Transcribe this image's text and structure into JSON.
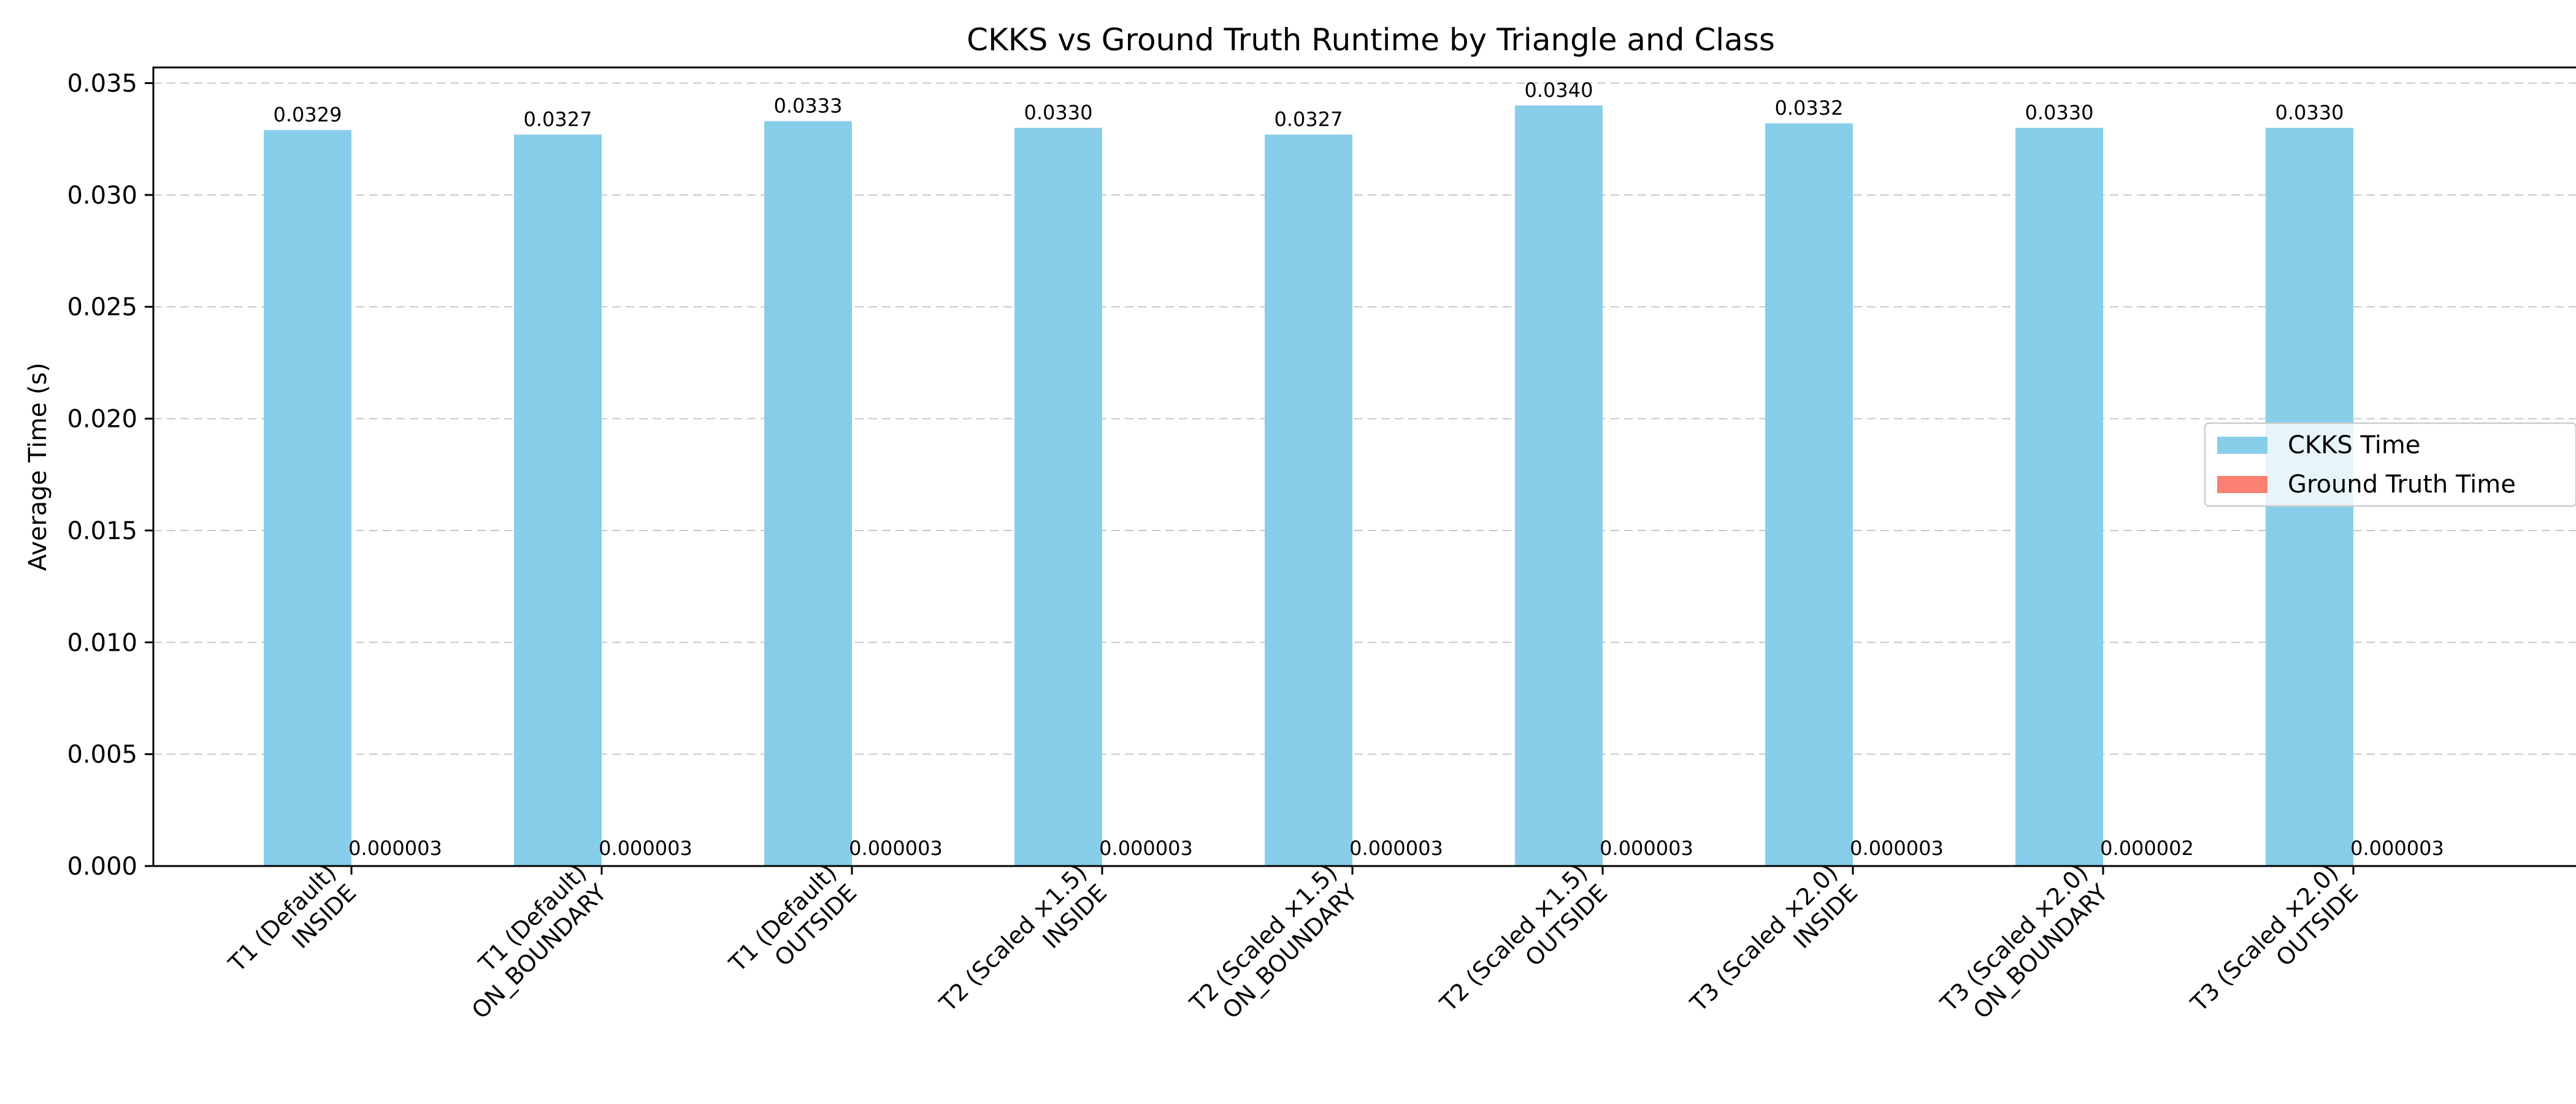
{
  "chart_data": {
    "type": "bar",
    "title": "CKKS vs Ground Truth Runtime by Triangle and Class",
    "xlabel": "",
    "ylabel": "Average Time (s)",
    "ylim": [
      0,
      0.0357
    ],
    "yticks": [
      0.0,
      0.005,
      0.01,
      0.015,
      0.02,
      0.025,
      0.03,
      0.035
    ],
    "ytick_labels": [
      "0.000",
      "0.005",
      "0.010",
      "0.015",
      "0.020",
      "0.025",
      "0.030",
      "0.035"
    ],
    "grid": "horizontal dashed",
    "legend_position": "center-right",
    "categories": [
      [
        "T1 (Default)",
        "INSIDE"
      ],
      [
        "T1 (Default)",
        "ON_BOUNDARY"
      ],
      [
        "T1 (Default)",
        "OUTSIDE"
      ],
      [
        "T2 (Scaled ×1.5)",
        "INSIDE"
      ],
      [
        "T2 (Scaled ×1.5)",
        "ON_BOUNDARY"
      ],
      [
        "T2 (Scaled ×1.5)",
        "OUTSIDE"
      ],
      [
        "T3 (Scaled ×2.0)",
        "INSIDE"
      ],
      [
        "T3 (Scaled ×2.0)",
        "ON_BOUNDARY"
      ],
      [
        "T3 (Scaled ×2.0)",
        "OUTSIDE"
      ]
    ],
    "series": [
      {
        "name": "CKKS Time",
        "color": "#87ceeb",
        "values": [
          0.0329,
          0.0327,
          0.0333,
          0.033,
          0.0327,
          0.034,
          0.0332,
          0.033,
          0.033
        ],
        "labels": [
          "0.0329",
          "0.0327",
          "0.0333",
          "0.0330",
          "0.0327",
          "0.0340",
          "0.0332",
          "0.0330",
          "0.0330"
        ]
      },
      {
        "name": "Ground Truth Time",
        "color": "#fa8072",
        "values": [
          3e-06,
          3e-06,
          3e-06,
          3e-06,
          3e-06,
          3e-06,
          3e-06,
          2e-06,
          3e-06
        ],
        "labels": [
          "0.000003",
          "0.000003",
          "0.000003",
          "0.000003",
          "0.000003",
          "0.000003",
          "0.000003",
          "0.000002",
          "0.000003"
        ]
      }
    ]
  }
}
